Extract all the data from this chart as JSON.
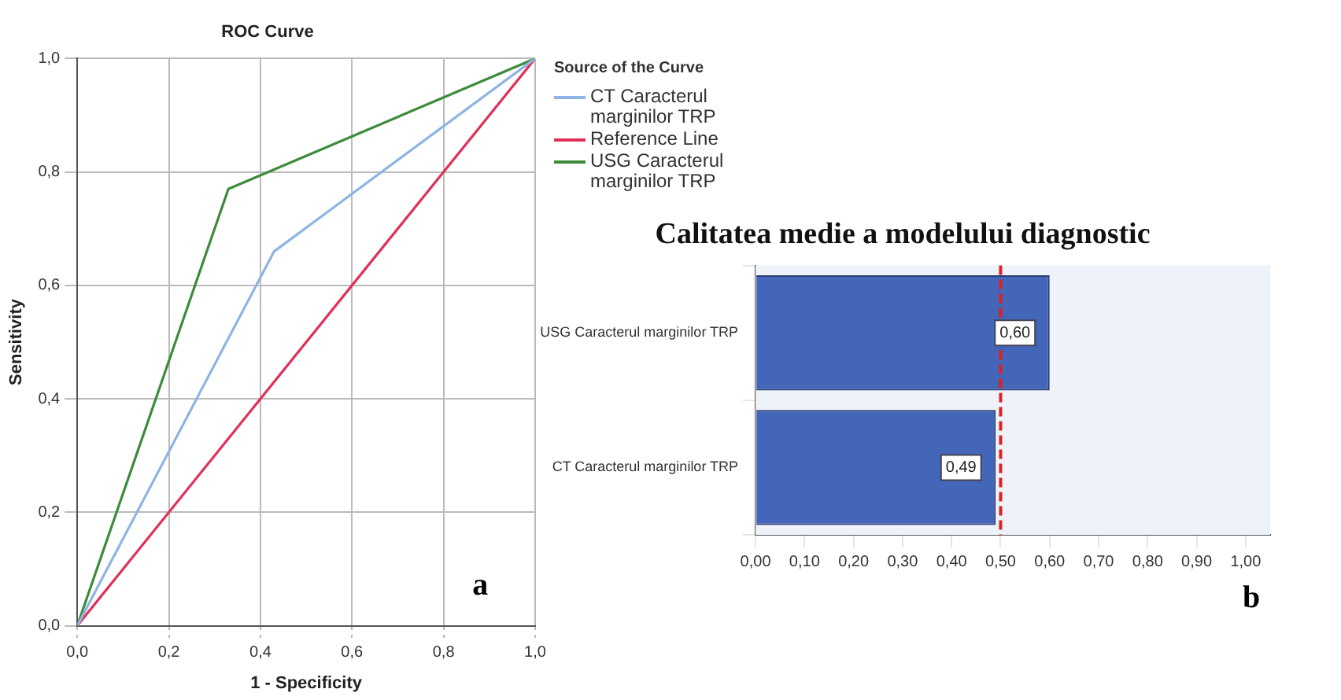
{
  "chart_data": [
    {
      "type": "line",
      "title": "ROC Curve",
      "xlabel": "1 - Specificity",
      "ylabel": "Sensitivity",
      "legend_title": "Source of the Curve",
      "legend": "right",
      "grid": true,
      "marker": "none",
      "line_style": "solid",
      "xlim": [
        0,
        1
      ],
      "ylim": [
        0,
        1
      ],
      "xticks": [
        {
          "value": 0,
          "label": "0,0"
        },
        {
          "value": 0.2,
          "label": "0,2"
        },
        {
          "value": 0.4,
          "label": "0,4"
        },
        {
          "value": 0.6,
          "label": "0,6"
        },
        {
          "value": 0.8,
          "label": "0,8"
        },
        {
          "value": 1,
          "label": "1,0"
        }
      ],
      "yticks": [
        {
          "value": 0,
          "label": "0,0"
        },
        {
          "value": 0.2,
          "label": "0,2"
        },
        {
          "value": 0.4,
          "label": "0,4"
        },
        {
          "value": 0.6,
          "label": "0,6"
        },
        {
          "value": 0.8,
          "label": "0,8"
        },
        {
          "value": 1,
          "label": "1,0"
        }
      ],
      "series": [
        {
          "name": "CT Caracterul marginilor TRP",
          "color": "#8fb4e3",
          "x": [
            0,
            0.43,
            1
          ],
          "values": [
            0,
            0.66,
            1
          ]
        },
        {
          "name": "Reference Line",
          "color": "#e0305a",
          "x": [
            0,
            1
          ],
          "values": [
            0,
            1
          ]
        },
        {
          "name": "USG Caracterul marginilor TRP",
          "color": "#3c8c3c",
          "x": [
            0,
            0.33,
            1
          ],
          "values": [
            0,
            0.77,
            1
          ]
        }
      ],
      "annotations": [
        "a"
      ]
    },
    {
      "type": "bar",
      "orientation": "horizontal",
      "title": "Calitatea medie a modelului diagnostic",
      "categories": [
        "USG Caracterul marginilor TRP",
        "CT Caracterul marginilor TRP"
      ],
      "values": [
        0.6,
        0.49
      ],
      "color": "#4466b8",
      "value_labels": [
        "0,60",
        "0,49"
      ],
      "grid": false,
      "xlim": [
        0,
        1.05
      ],
      "xticks": [
        {
          "value": 0,
          "label": "0,00"
        },
        {
          "value": 0.1,
          "label": "0,10"
        },
        {
          "value": 0.2,
          "label": "0,20"
        },
        {
          "value": 0.3,
          "label": "0,30"
        },
        {
          "value": 0.4,
          "label": "0,40"
        },
        {
          "value": 0.5,
          "label": "0,50"
        },
        {
          "value": 0.6,
          "label": "0,60"
        },
        {
          "value": 0.7,
          "label": "0,70"
        },
        {
          "value": 0.8,
          "label": "0,80"
        },
        {
          "value": 0.9,
          "label": "0,90"
        },
        {
          "value": 1,
          "label": "1,00"
        }
      ],
      "ref_lines": [
        {
          "axis": "x",
          "value": 0.5,
          "color": "#e02020",
          "line_style": "dashed"
        }
      ],
      "annotations": [
        "b"
      ]
    }
  ]
}
